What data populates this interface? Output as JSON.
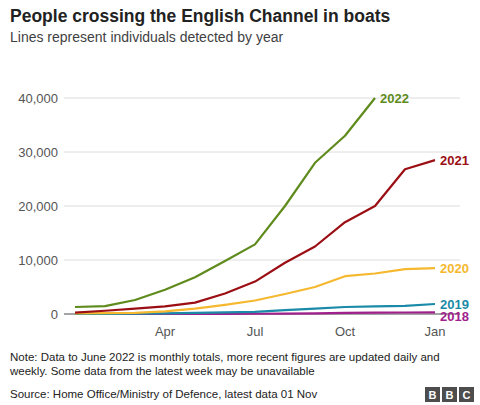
{
  "chart_data": {
    "type": "line",
    "title": "People crossing the English Channel in boats",
    "subtitle": "Lines represent individuals detected by year",
    "categories": [
      null,
      null,
      null,
      "Apr",
      null,
      null,
      "Jul",
      null,
      null,
      "Oct",
      null,
      null,
      "Jan"
    ],
    "series": [
      {
        "name": "2022",
        "color": "#5f8b1d",
        "values": [
          1300,
          1450,
          2600,
          4500,
          6800,
          9800,
          12900,
          20000,
          28000,
          33000,
          40000,
          null,
          null
        ]
      },
      {
        "name": "2021",
        "color": "#9b0f14",
        "values": [
          250,
          600,
          1000,
          1400,
          2100,
          3800,
          6000,
          9500,
          12500,
          17000,
          20000,
          26800,
          28500
        ]
      },
      {
        "name": "2020",
        "color": "#f5b82e",
        "values": [
          100,
          150,
          200,
          500,
          1000,
          1700,
          2500,
          3700,
          5000,
          7000,
          7500,
          8300,
          8500
        ]
      },
      {
        "name": "2019",
        "color": "#1a8aa8",
        "values": [
          0,
          10,
          50,
          100,
          200,
          300,
          400,
          700,
          1000,
          1300,
          1400,
          1500,
          1850
        ]
      },
      {
        "name": "2018",
        "color": "#a0218c",
        "values": [
          0,
          0,
          10,
          20,
          30,
          40,
          50,
          80,
          100,
          200,
          250,
          280,
          300
        ]
      }
    ],
    "ylim": [
      0,
      40000
    ],
    "yticks": [
      0,
      {
        "value": 10000,
        "label": "10,000"
      },
      {
        "value": 20000,
        "label": "20,000"
      },
      {
        "value": 30000,
        "label": "30,000"
      },
      {
        "value": 40000,
        "label": "40,000"
      }
    ],
    "grid": true
  },
  "note": "Note: Data to June 2022 is monthly totals, more recent figures are updated daily and weekly. Some data from the latest week may be unavailable",
  "source": "Source: Home Office/Ministry of Defence, latest data 01 Nov",
  "logo": "BBC"
}
